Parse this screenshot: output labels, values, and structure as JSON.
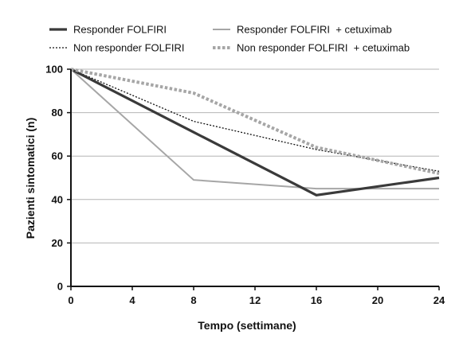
{
  "chart_data": {
    "type": "line",
    "xlabel": "Tempo (settimane)",
    "ylabel": "Pazienti sintomatici (n)",
    "xlim": [
      0,
      24
    ],
    "ylim": [
      0,
      100
    ],
    "xticks": [
      0,
      4,
      8,
      12,
      16,
      20,
      24
    ],
    "yticks": [
      0,
      20,
      40,
      60,
      80,
      100
    ],
    "grid": "horizontal",
    "legend_position": "top",
    "series": [
      {
        "name": "Responder FOLFIRI",
        "style": "solid-thick",
        "color": "#3a3a3a",
        "x": [
          0,
          8,
          16,
          24
        ],
        "y": [
          100,
          71,
          42,
          50
        ]
      },
      {
        "name": "Responder FOLFIRI  + cetuximab",
        "style": "solid",
        "color": "#a6a6a6",
        "x": [
          0,
          8,
          16,
          24
        ],
        "y": [
          100,
          49,
          45,
          45
        ]
      },
      {
        "name": "Non responder FOLFIRI",
        "style": "dotted",
        "color": "#111111",
        "x": [
          0,
          8,
          16,
          24
        ],
        "y": [
          100,
          76,
          63,
          53
        ]
      },
      {
        "name": "Non responder FOLFIRI  + cetuximab",
        "style": "dotted-thick",
        "color": "#a6a6a6",
        "x": [
          0,
          8,
          16,
          24
        ],
        "y": [
          100,
          89,
          64,
          52
        ]
      }
    ]
  }
}
